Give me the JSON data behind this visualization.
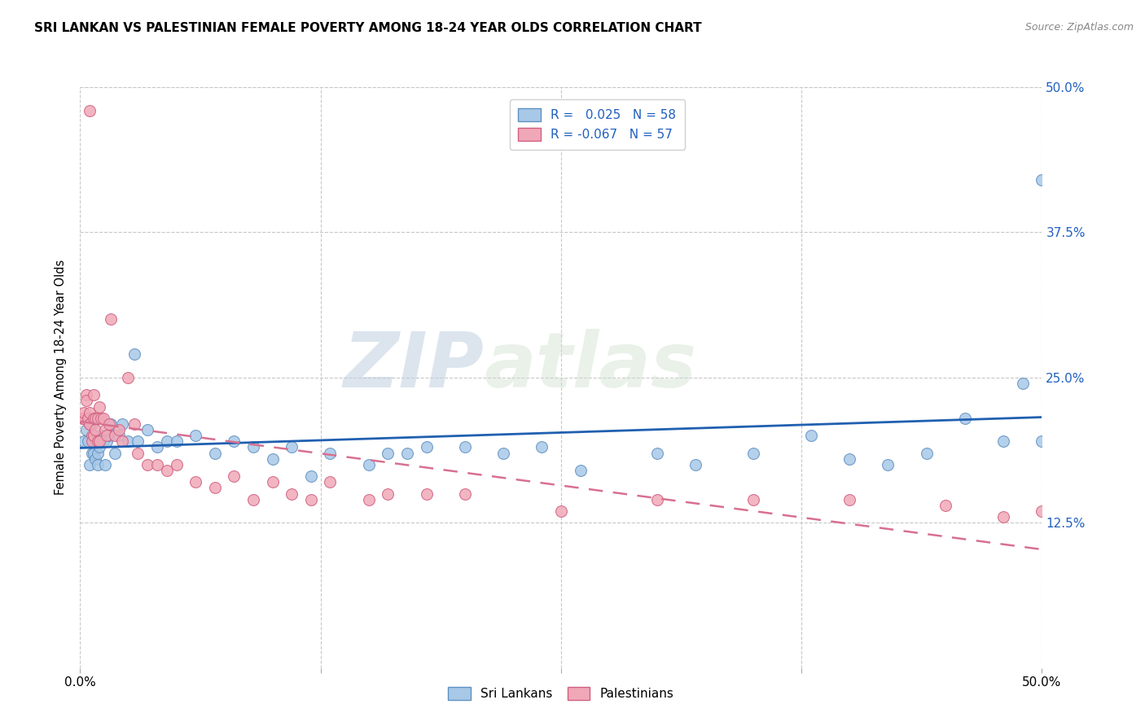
{
  "title": "SRI LANKAN VS PALESTINIAN FEMALE POVERTY AMONG 18-24 YEAR OLDS CORRELATION CHART",
  "source": "Source: ZipAtlas.com",
  "ylabel": "Female Poverty Among 18-24 Year Olds",
  "xlim": [
    0.0,
    0.5
  ],
  "ylim": [
    0.0,
    0.5
  ],
  "xtick_labels": [
    "0.0%",
    "",
    "",
    "",
    "50.0%"
  ],
  "xtick_positions": [
    0.0,
    0.125,
    0.25,
    0.375,
    0.5
  ],
  "ytick_positions": [
    0.125,
    0.25,
    0.375,
    0.5
  ],
  "right_ytick_labels": [
    "12.5%",
    "25.0%",
    "37.5%",
    "50.0%"
  ],
  "right_ytick_positions": [
    0.125,
    0.25,
    0.375,
    0.5
  ],
  "background_color": "#ffffff",
  "plot_bg_color": "#ffffff",
  "grid_color": "#c8c8c8",
  "sri_lanka_color": "#a8c8e8",
  "sri_lanka_edge": "#6090c0",
  "palestine_color": "#f0a8b8",
  "palestine_edge": "#d06080",
  "sri_lanka_R": 0.025,
  "sri_lanka_N": 58,
  "palestine_R": -0.067,
  "palestine_N": 57,
  "sri_lanka_trend_color": "#2060b0",
  "palestine_trend_color": "#d87090",
  "legend_label_blue": "Sri Lankans",
  "legend_label_pink": "Palestinians",
  "watermark_zip": "ZIP",
  "watermark_atlas": "atlas",
  "sri_lanka_x": [
    0.002,
    0.003,
    0.004,
    0.005,
    0.006,
    0.006,
    0.007,
    0.007,
    0.008,
    0.008,
    0.009,
    0.009,
    0.01,
    0.01,
    0.011,
    0.012,
    0.013,
    0.014,
    0.015,
    0.016,
    0.018,
    0.02,
    0.022,
    0.025,
    0.028,
    0.03,
    0.035,
    0.04,
    0.045,
    0.05,
    0.06,
    0.07,
    0.08,
    0.09,
    0.1,
    0.11,
    0.12,
    0.13,
    0.15,
    0.16,
    0.17,
    0.18,
    0.2,
    0.22,
    0.24,
    0.26,
    0.3,
    0.32,
    0.35,
    0.38,
    0.4,
    0.42,
    0.44,
    0.46,
    0.48,
    0.49,
    0.5,
    0.5
  ],
  "sri_lanka_y": [
    0.195,
    0.205,
    0.195,
    0.175,
    0.21,
    0.185,
    0.185,
    0.2,
    0.195,
    0.18,
    0.175,
    0.185,
    0.19,
    0.195,
    0.2,
    0.195,
    0.175,
    0.195,
    0.2,
    0.21,
    0.185,
    0.2,
    0.21,
    0.195,
    0.27,
    0.195,
    0.205,
    0.19,
    0.195,
    0.195,
    0.2,
    0.185,
    0.195,
    0.19,
    0.18,
    0.19,
    0.165,
    0.185,
    0.175,
    0.185,
    0.185,
    0.19,
    0.19,
    0.185,
    0.19,
    0.17,
    0.185,
    0.175,
    0.185,
    0.2,
    0.18,
    0.175,
    0.185,
    0.215,
    0.195,
    0.245,
    0.195,
    0.42
  ],
  "palestine_x": [
    0.001,
    0.002,
    0.002,
    0.003,
    0.003,
    0.004,
    0.004,
    0.005,
    0.005,
    0.005,
    0.006,
    0.006,
    0.007,
    0.007,
    0.007,
    0.008,
    0.008,
    0.009,
    0.009,
    0.01,
    0.01,
    0.011,
    0.012,
    0.013,
    0.014,
    0.015,
    0.016,
    0.018,
    0.02,
    0.022,
    0.025,
    0.028,
    0.03,
    0.035,
    0.04,
    0.045,
    0.05,
    0.06,
    0.07,
    0.08,
    0.09,
    0.1,
    0.11,
    0.12,
    0.13,
    0.15,
    0.16,
    0.18,
    0.2,
    0.25,
    0.3,
    0.35,
    0.4,
    0.45,
    0.48,
    0.5,
    0.005
  ],
  "palestine_y": [
    0.215,
    0.215,
    0.22,
    0.235,
    0.23,
    0.215,
    0.215,
    0.22,
    0.21,
    0.21,
    0.2,
    0.195,
    0.235,
    0.2,
    0.215,
    0.205,
    0.215,
    0.195,
    0.215,
    0.225,
    0.195,
    0.215,
    0.215,
    0.205,
    0.2,
    0.21,
    0.3,
    0.2,
    0.205,
    0.195,
    0.25,
    0.21,
    0.185,
    0.175,
    0.175,
    0.17,
    0.175,
    0.16,
    0.155,
    0.165,
    0.145,
    0.16,
    0.15,
    0.145,
    0.16,
    0.145,
    0.15,
    0.15,
    0.15,
    0.135,
    0.145,
    0.145,
    0.145,
    0.14,
    0.13,
    0.135,
    0.48
  ]
}
